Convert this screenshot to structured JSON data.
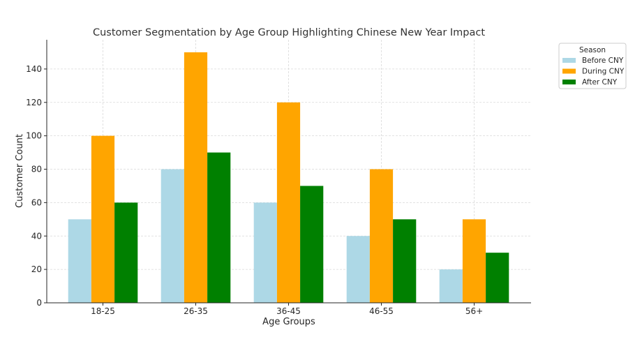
{
  "chart_data": {
    "type": "bar",
    "title": "Customer Segmentation by Age Group Highlighting Chinese New Year Impact",
    "xlabel": "Age Groups",
    "ylabel": "Customer Count",
    "categories": [
      "18-25",
      "26-35",
      "36-45",
      "46-55",
      "56+"
    ],
    "series": [
      {
        "name": "Before CNY",
        "values": [
          50,
          80,
          60,
          40,
          20
        ],
        "color": "#add8e6"
      },
      {
        "name": "During CNY",
        "values": [
          100,
          150,
          120,
          80,
          50
        ],
        "color": "#ffa500"
      },
      {
        "name": "After CNY",
        "values": [
          60,
          90,
          70,
          50,
          30
        ],
        "color": "#008000"
      }
    ],
    "ylim": [
      0,
      157.5
    ],
    "yticks": [
      0,
      20,
      40,
      60,
      80,
      100,
      120,
      140
    ],
    "grid": true,
    "legend": {
      "title": "Season",
      "placement": "outside-top-right"
    }
  }
}
